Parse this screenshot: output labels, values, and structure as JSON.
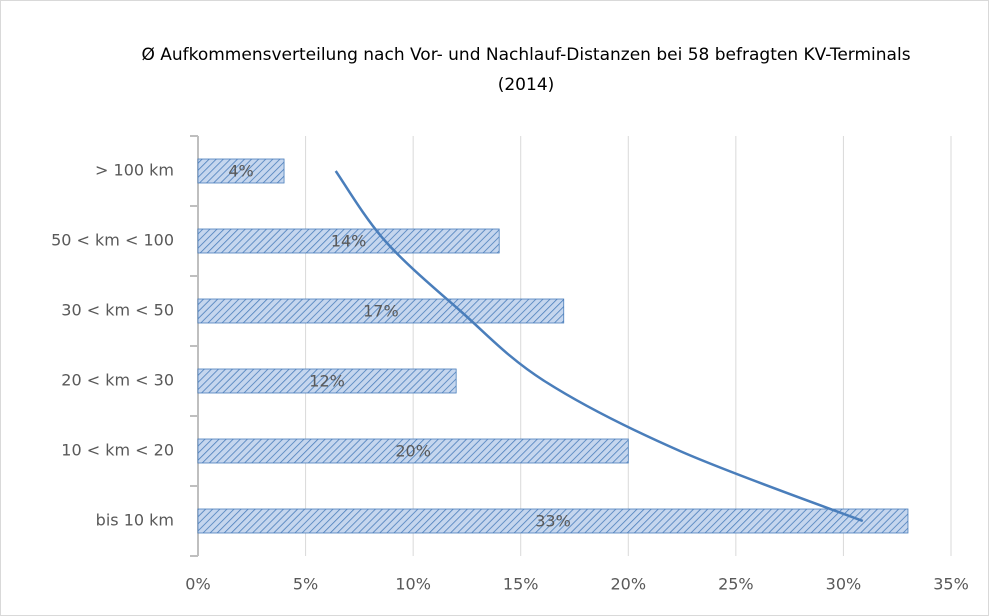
{
  "chart_data": {
    "type": "hbar",
    "title_lines": [
      "Ø Aufkommensverteilung nach Vor- und Nachlauf-Distanzen bei 58 befragten KV-Terminals",
      "(2014)"
    ],
    "categories": [
      "> 100 km",
      "50 < km < 100",
      "30 < km < 50",
      "20 < km < 30",
      "10 < km < 20",
      "bis 10 km"
    ],
    "values": [
      4,
      14,
      17,
      12,
      20,
      33
    ],
    "value_labels": [
      "4%",
      "14%",
      "17%",
      "12%",
      "20%",
      "33%"
    ],
    "color": "#4a7ebb",
    "trend_values": [
      6.4,
      8.7,
      12.2,
      16.1,
      22.4,
      30.9
    ],
    "trend_color": "#4a7ebb",
    "xlim": [
      0,
      35
    ],
    "xticks": [
      {
        "value": 0,
        "label": "0%"
      },
      {
        "value": 5,
        "label": "5%"
      },
      {
        "value": 10,
        "label": "10%"
      },
      {
        "value": 15,
        "label": "15%"
      },
      {
        "value": 20,
        "label": "20%"
      },
      {
        "value": 25,
        "label": "25%"
      },
      {
        "value": 30,
        "label": "30%"
      },
      {
        "value": 35,
        "label": "35%"
      }
    ],
    "grid": true
  }
}
